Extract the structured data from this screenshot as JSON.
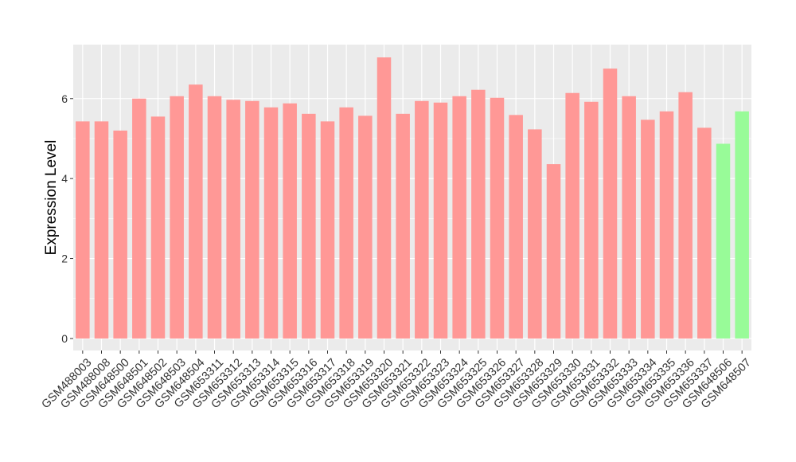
{
  "chart_data": {
    "type": "bar",
    "ylabel": "Expression Level",
    "xlabel": "",
    "ylim": [
      -0.3,
      7.35
    ],
    "yticks": [
      0,
      2,
      4,
      6
    ],
    "grid": true,
    "categories": [
      "GSM488003",
      "GSM488008",
      "GSM648500",
      "GSM648501",
      "GSM648502",
      "GSM648503",
      "GSM648504",
      "GSM653311",
      "GSM653312",
      "GSM653313",
      "GSM653314",
      "GSM653315",
      "GSM653316",
      "GSM653317",
      "GSM653318",
      "GSM653319",
      "GSM653320",
      "GSM653321",
      "GSM653322",
      "GSM653323",
      "GSM653324",
      "GSM653325",
      "GSM653326",
      "GSM653327",
      "GSM653328",
      "GSM653329",
      "GSM653330",
      "GSM653331",
      "GSM653332",
      "GSM653333",
      "GSM653334",
      "GSM653335",
      "GSM653336",
      "GSM653337",
      "GSM648506",
      "GSM648507"
    ],
    "values": [
      5.43,
      5.43,
      5.2,
      6.0,
      5.55,
      6.06,
      6.35,
      6.06,
      5.97,
      5.94,
      5.78,
      5.88,
      5.62,
      5.43,
      5.78,
      5.57,
      7.03,
      5.62,
      5.94,
      5.9,
      6.06,
      6.22,
      6.02,
      5.59,
      5.23,
      4.36,
      6.14,
      5.92,
      6.75,
      6.06,
      5.47,
      5.68,
      6.16,
      5.27,
      4.87,
      5.68
    ],
    "groups": [
      "a",
      "a",
      "a",
      "a",
      "a",
      "a",
      "a",
      "a",
      "a",
      "a",
      "a",
      "a",
      "a",
      "a",
      "a",
      "a",
      "a",
      "a",
      "a",
      "a",
      "a",
      "a",
      "a",
      "a",
      "a",
      "a",
      "a",
      "a",
      "a",
      "a",
      "a",
      "a",
      "a",
      "a",
      "b",
      "b"
    ],
    "colors": {
      "a": "#ff9896",
      "b": "#98fb98",
      "panel": "#ebebeb",
      "gridline": "#ffffff"
    }
  }
}
